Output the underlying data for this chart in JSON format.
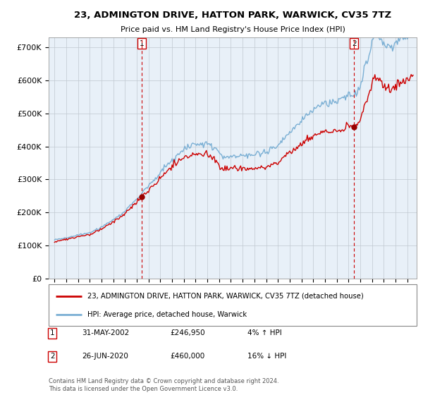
{
  "title": "23, ADMINGTON DRIVE, HATTON PARK, WARWICK, CV35 7TZ",
  "subtitle": "Price paid vs. HM Land Registry's House Price Index (HPI)",
  "ylabel_ticks": [
    "£0",
    "£100K",
    "£200K",
    "£300K",
    "£400K",
    "£500K",
    "£600K",
    "£700K"
  ],
  "ytick_values": [
    0,
    100000,
    200000,
    300000,
    400000,
    500000,
    600000,
    700000
  ],
  "ylim": [
    0,
    730000
  ],
  "xlim": [
    1994.5,
    2025.8
  ],
  "sale1_x": 2002.42,
  "sale1_y": 246950,
  "sale2_x": 2020.48,
  "sale2_y": 460000,
  "legend_entries": [
    "23, ADMINGTON DRIVE, HATTON PARK, WARWICK, CV35 7TZ (detached house)",
    "HPI: Average price, detached house, Warwick"
  ],
  "table_rows": [
    [
      "1",
      "31-MAY-2002",
      "£246,950",
      "4% ↑ HPI"
    ],
    [
      "2",
      "26-JUN-2020",
      "£460,000",
      "16% ↓ HPI"
    ]
  ],
  "footnote": "Contains HM Land Registry data © Crown copyright and database right 2024.\nThis data is licensed under the Open Government Licence v3.0.",
  "line_color_property": "#cc0000",
  "line_color_hpi": "#7aafd4",
  "marker_color": "#990000",
  "chart_bg": "#e8f0f8",
  "fig_bg": "#ffffff",
  "grid_color": "#c0c8d0",
  "dashed_color": "#cc0000"
}
